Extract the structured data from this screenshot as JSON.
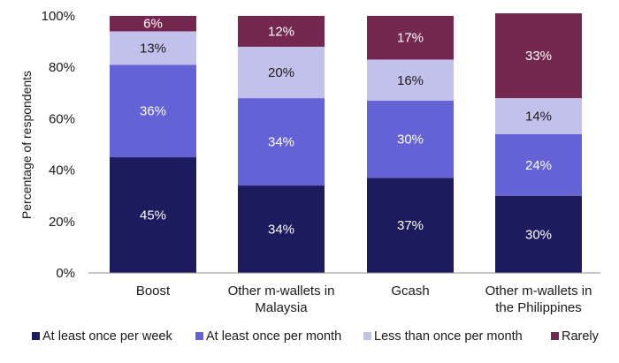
{
  "chart_data": {
    "type": "bar",
    "stacked": true,
    "ylabel": "Percentage of respondents",
    "ylim": [
      0,
      100
    ],
    "yticks": [
      "0%",
      "20%",
      "40%",
      "60%",
      "80%",
      "100%"
    ],
    "ytick_values": [
      0,
      20,
      40,
      60,
      80,
      100
    ],
    "categories": [
      [
        "Boost"
      ],
      [
        "Other m-wallets in",
        "Malaysia"
      ],
      [
        "Gcash"
      ],
      [
        "Other m-wallets in",
        "the Philippines"
      ]
    ],
    "series": [
      {
        "name": "At least once per week",
        "color": "#1c1b5e",
        "label_color": "#ffffff",
        "values": [
          45,
          34,
          37,
          30
        ]
      },
      {
        "name": "At least once per month",
        "color": "#6462d4",
        "label_color": "#ffffff",
        "values": [
          36,
          34,
          30,
          24
        ]
      },
      {
        "name": "Less than once per month",
        "color": "#c2c1ec",
        "label_color": "#1a1a1a",
        "values": [
          13,
          20,
          16,
          14
        ]
      },
      {
        "name": "Rarely",
        "color": "#74284f",
        "label_color": "#ffffff",
        "values": [
          6,
          12,
          17,
          33
        ]
      }
    ],
    "legend_position": "bottom",
    "grid": false
  }
}
